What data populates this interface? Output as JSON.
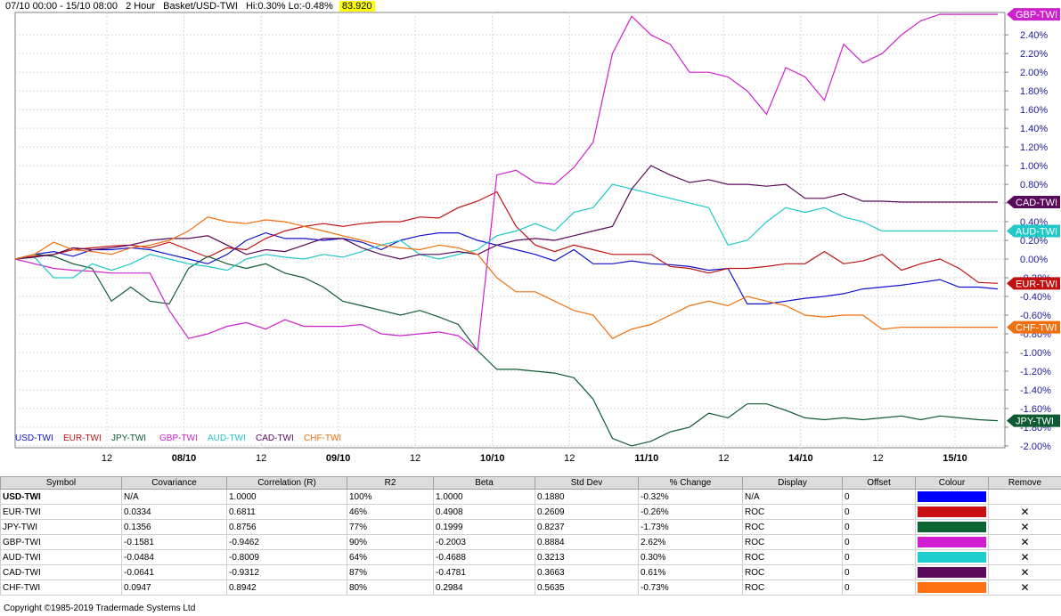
{
  "header": {
    "range": "07/10 00:00 - 15/10 08:00",
    "period": "2 Hour",
    "basket": "Basket/USD-TWI",
    "hilo": "Hi:0.30% Lo:-0.48%",
    "last_value": "83.920"
  },
  "chart_data": {
    "type": "line",
    "x_tick_labels": [
      "12",
      "08/10",
      "12",
      "09/10",
      "12",
      "10/10",
      "12",
      "11/10",
      "12",
      "14/10",
      "12",
      "15/10"
    ],
    "y_tick_labels": [
      "2.40%",
      "2.20%",
      "2.00%",
      "1.80%",
      "1.60%",
      "1.40%",
      "1.20%",
      "1.00%",
      "0.80%",
      "0.60%",
      "0.40%",
      "0.20%",
      "0.00%",
      "-0.20%",
      "-0.40%",
      "-0.60%",
      "-0.80%",
      "-1.00%",
      "-1.20%",
      "-1.40%",
      "-1.60%",
      "-1.80%",
      "-2.00%"
    ],
    "ylim": [
      -2.02,
      2.64
    ],
    "grid": true,
    "legend": [
      "USD-TWI",
      "EUR-TWI",
      "JPY-TWI",
      "GBP-TWI",
      "AUD-TWI",
      "CAD-TWI",
      "CHF-TWI"
    ],
    "series": [
      {
        "name": "USD-TWI",
        "color": "#1010d0",
        "values": [
          0,
          0.05,
          0.08,
          0.03,
          0.1,
          0.1,
          0.12,
          0.1,
          0.05,
          0,
          -0.05,
          0.05,
          0.2,
          0.28,
          0.22,
          0.22,
          0.2,
          0.22,
          0.18,
          0.1,
          0.2,
          0.25,
          0.28,
          0.28,
          0.2,
          0.15,
          0.1,
          0.05,
          -0.02,
          0.1,
          -0.05,
          -0.05,
          -0.02,
          -0.05,
          -0.06,
          -0.08,
          -0.12,
          -0.1,
          -0.48,
          -0.48,
          -0.45,
          -0.42,
          -0.4,
          -0.37,
          -0.32,
          -0.3,
          -0.28,
          -0.25,
          -0.22,
          -0.3,
          -0.3,
          -0.32
        ]
      },
      {
        "name": "EUR-TWI",
        "color": "#c01010",
        "values": [
          0,
          0.03,
          0.05,
          0.1,
          0.12,
          0.14,
          0.15,
          0.12,
          0.18,
          0.1,
          0.02,
          0.12,
          0.1,
          0.22,
          0.3,
          0.35,
          0.38,
          0.35,
          0.38,
          0.4,
          0.4,
          0.45,
          0.44,
          0.55,
          0.62,
          0.72,
          0.35,
          0.15,
          0.08,
          0.15,
          0.1,
          0.05,
          0.05,
          0.05,
          -0.08,
          -0.1,
          -0.15,
          -0.1,
          -0.1,
          -0.08,
          -0.05,
          -0.05,
          0.08,
          -0.05,
          -0.02,
          0.05,
          -0.12,
          -0.05,
          0,
          -0.1,
          -0.25,
          -0.26
        ]
      },
      {
        "name": "JPY-TWI",
        "color": "#0e5a32",
        "values": [
          0,
          0.05,
          0.03,
          -0.05,
          -0.1,
          -0.45,
          -0.3,
          -0.45,
          -0.48,
          -0.1,
          0.03,
          -0.05,
          -0.1,
          -0.05,
          -0.15,
          -0.2,
          -0.3,
          -0.45,
          -0.5,
          -0.55,
          -0.6,
          -0.55,
          -0.62,
          -0.7,
          -0.98,
          -1.18,
          -1.18,
          -1.2,
          -1.22,
          -1.27,
          -1.5,
          -1.92,
          -2.0,
          -1.95,
          -1.85,
          -1.8,
          -1.65,
          -1.7,
          -1.55,
          -1.55,
          -1.62,
          -1.7,
          -1.72,
          -1.7,
          -1.72,
          -1.7,
          -1.68,
          -1.72,
          -1.68,
          -1.7,
          -1.72,
          -1.73
        ]
      },
      {
        "name": "GBP-TWI",
        "color": "#cc22cc",
        "values": [
          0,
          -0.05,
          -0.1,
          -0.12,
          -0.13,
          -0.15,
          -0.15,
          -0.15,
          -0.55,
          -0.85,
          -0.8,
          -0.72,
          -0.68,
          -0.75,
          -0.65,
          -0.72,
          -0.72,
          -0.72,
          -0.7,
          -0.8,
          -0.82,
          -0.8,
          -0.78,
          -0.82,
          -0.98,
          0.9,
          0.95,
          0.82,
          0.8,
          0.98,
          1.25,
          2.2,
          2.6,
          2.4,
          2.3,
          2.0,
          2.0,
          1.95,
          1.8,
          1.55,
          2.05,
          1.95,
          1.7,
          2.3,
          2.1,
          2.2,
          2.4,
          2.55,
          2.62,
          2.62,
          2.62,
          2.62
        ]
      },
      {
        "name": "AUD-TWI",
        "color": "#20c8c8",
        "values": [
          0,
          0.02,
          -0.2,
          -0.2,
          -0.05,
          -0.12,
          -0.05,
          0.05,
          0,
          -0.05,
          -0.08,
          -0.12,
          0,
          0.05,
          0.02,
          0,
          0.05,
          0.02,
          0.08,
          0.15,
          0.2,
          0.05,
          0,
          0.05,
          0.1,
          0.25,
          0.3,
          0.38,
          0.3,
          0.5,
          0.55,
          0.8,
          0.75,
          0.7,
          0.65,
          0.6,
          0.55,
          0.15,
          0.2,
          0.4,
          0.55,
          0.5,
          0.55,
          0.45,
          0.4,
          0.3,
          0.3,
          0.3,
          0.3,
          0.3,
          0.3,
          0.3
        ]
      },
      {
        "name": "CAD-TWI",
        "color": "#5a0a5a",
        "values": [
          0,
          0.02,
          0.05,
          0.12,
          0.1,
          0.12,
          0.15,
          0.2,
          0.22,
          0.22,
          0.25,
          0.15,
          0.05,
          0.1,
          0.08,
          0.15,
          0.22,
          0.22,
          0.12,
          0.05,
          0,
          0.05,
          0.05,
          0.08,
          0.05,
          0.15,
          0.2,
          0.22,
          0.2,
          0.25,
          0.3,
          0.35,
          0.75,
          1.0,
          0.9,
          0.82,
          0.85,
          0.8,
          0.8,
          0.78,
          0.8,
          0.65,
          0.65,
          0.7,
          0.62,
          0.62,
          0.61,
          0.61,
          0.61,
          0.61,
          0.61,
          0.61
        ]
      },
      {
        "name": "CHF-TWI",
        "color": "#f07010",
        "values": [
          0,
          0.05,
          0.18,
          0.1,
          0.08,
          0.05,
          0.12,
          0.15,
          0.2,
          0.3,
          0.45,
          0.4,
          0.38,
          0.42,
          0.4,
          0.35,
          0.3,
          0.25,
          0.2,
          0.15,
          0.12,
          0.1,
          0.15,
          0.12,
          0.05,
          -0.2,
          -0.35,
          -0.35,
          -0.45,
          -0.55,
          -0.6,
          -0.85,
          -0.75,
          -0.7,
          -0.6,
          -0.5,
          -0.45,
          -0.5,
          -0.4,
          -0.45,
          -0.5,
          -0.6,
          -0.62,
          -0.6,
          -0.6,
          -0.75,
          -0.73,
          -0.73,
          -0.73,
          -0.73,
          -0.73,
          -0.73
        ]
      }
    ],
    "end_labels": [
      {
        "name": "GBP-TWI",
        "color": "#cc22cc",
        "value": 2.62
      },
      {
        "name": "CAD-TWI",
        "color": "#5a0a5a",
        "value": 0.61
      },
      {
        "name": "AUD-TWI",
        "color": "#20c8c8",
        "value": 0.3
      },
      {
        "name": "EUR-TWI",
        "color": "#c01010",
        "value": -0.26
      },
      {
        "name": "CHF-TWI",
        "color": "#f07010",
        "value": -0.73
      },
      {
        "name": "JPY-TWI",
        "color": "#0e5a32",
        "value": -1.73
      }
    ]
  },
  "table": {
    "headers": [
      "Symbol",
      "Covariance",
      "Correlation (R)",
      "R2",
      "Beta",
      "Std Dev",
      "% Change",
      "Display",
      "Offset",
      "Colour",
      "Remove"
    ],
    "rows": [
      {
        "symbol": "USD-TWI",
        "cov": "N/A",
        "corr": "1.0000",
        "r2": "100%",
        "beta": "1.0000",
        "std": "0.1880",
        "chg": "-0.32%",
        "display": "N/A",
        "offset": "0",
        "colour": "#0000ff",
        "remove": ""
      },
      {
        "symbol": "EUR-TWI",
        "cov": "0.0334",
        "corr": "0.6811",
        "r2": "46%",
        "beta": "0.4908",
        "std": "0.2609",
        "chg": "-0.26%",
        "display": "ROC",
        "offset": "0",
        "colour": "#c81010",
        "remove": "✕"
      },
      {
        "symbol": "JPY-TWI",
        "cov": "0.1356",
        "corr": "0.8756",
        "r2": "77%",
        "beta": "0.1999",
        "std": "0.8237",
        "chg": "-1.73%",
        "display": "ROC",
        "offset": "0",
        "colour": "#0e6432",
        "remove": "✕"
      },
      {
        "symbol": "GBP-TWI",
        "cov": "-0.1581",
        "corr": "-0.9462",
        "r2": "90%",
        "beta": "-0.2003",
        "std": "0.8884",
        "chg": "2.62%",
        "display": "ROC",
        "offset": "0",
        "colour": "#d21ed2",
        "remove": "✕"
      },
      {
        "symbol": "AUD-TWI",
        "cov": "-0.0484",
        "corr": "-0.8009",
        "r2": "64%",
        "beta": "-0.4688",
        "std": "0.3213",
        "chg": "0.30%",
        "display": "ROC",
        "offset": "0",
        "colour": "#1ecdcd",
        "remove": "✕"
      },
      {
        "symbol": "CAD-TWI",
        "cov": "-0.0641",
        "corr": "-0.9312",
        "r2": "87%",
        "beta": "-0.4781",
        "std": "0.3663",
        "chg": "0.61%",
        "display": "ROC",
        "offset": "0",
        "colour": "#5a0a5a",
        "remove": "✕"
      },
      {
        "symbol": "CHF-TWI",
        "cov": "0.0947",
        "corr": "0.8942",
        "r2": "80%",
        "beta": "0.2984",
        "std": "0.5635",
        "chg": "-0.73%",
        "display": "ROC",
        "offset": "0",
        "colour": "#ff7010",
        "remove": "✕"
      }
    ]
  },
  "footer": {
    "copyright": "Copyright ©1985-2019 Tradermade Systems Ltd"
  }
}
